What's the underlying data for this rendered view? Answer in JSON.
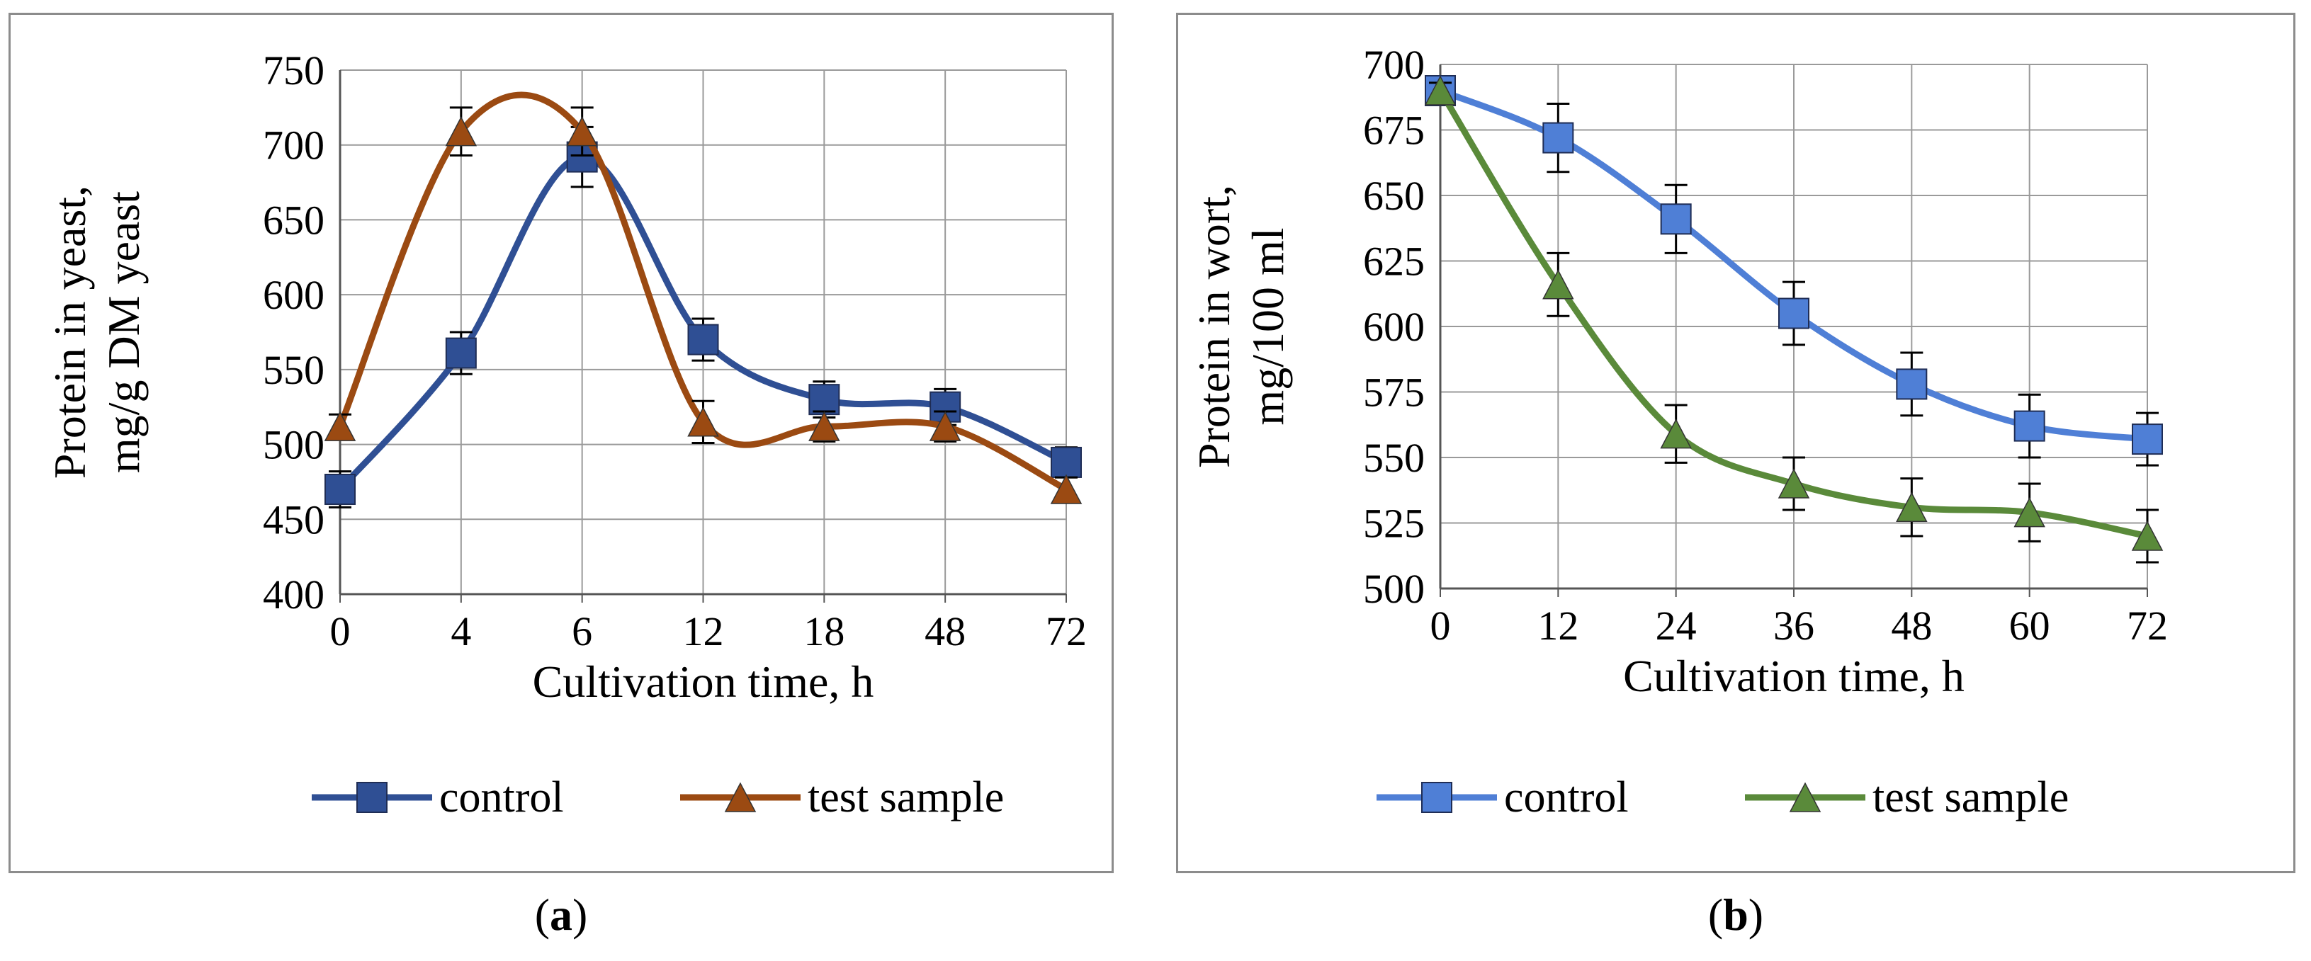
{
  "chart_data": [
    {
      "type": "line",
      "panel_label": "a",
      "xlabel": "Cultivation time, h",
      "ylabel": [
        "Protein in yeast,",
        "mg/g DM yeast"
      ],
      "categories": [
        "0",
        "4",
        "6",
        "12",
        "18",
        "48",
        "72"
      ],
      "ylim": [
        400,
        750
      ],
      "yticks": [
        400,
        450,
        500,
        550,
        600,
        650,
        700,
        750
      ],
      "grid": true,
      "legend_position": "bottom",
      "series": [
        {
          "name": "control",
          "marker": "square",
          "color": "#2f4f94",
          "values": [
            470,
            561,
            692,
            570,
            530,
            525,
            488
          ],
          "errors": [
            12,
            14,
            20,
            14,
            12,
            12,
            10
          ]
        },
        {
          "name": "test sample",
          "marker": "triangle",
          "color": "#9b4a12",
          "values": [
            512,
            709,
            709,
            515,
            512,
            512,
            470
          ],
          "errors": [
            8,
            16,
            16,
            14,
            10,
            10,
            8
          ]
        }
      ]
    },
    {
      "type": "line",
      "panel_label": "b",
      "xlabel": "Cultivation time, h",
      "ylabel": [
        "Protein in wort,",
        "mg/100 ml"
      ],
      "categories": [
        "0",
        "12",
        "24",
        "36",
        "48",
        "60",
        "72"
      ],
      "ylim": [
        500,
        700
      ],
      "yticks": [
        500,
        525,
        550,
        575,
        600,
        625,
        650,
        675,
        700
      ],
      "grid": true,
      "legend_position": "bottom",
      "series": [
        {
          "name": "control",
          "marker": "square",
          "color": "#4f7fd6",
          "values": [
            690,
            672,
            641,
            605,
            578,
            562,
            557
          ],
          "errors": [
            3,
            13,
            13,
            12,
            12,
            12,
            10
          ]
        },
        {
          "name": "test sample",
          "marker": "triangle",
          "color": "#5a8a3a",
          "values": [
            690,
            616,
            559,
            540,
            531,
            529,
            520
          ],
          "errors": [
            3,
            12,
            11,
            10,
            11,
            11,
            10
          ]
        }
      ]
    }
  ]
}
